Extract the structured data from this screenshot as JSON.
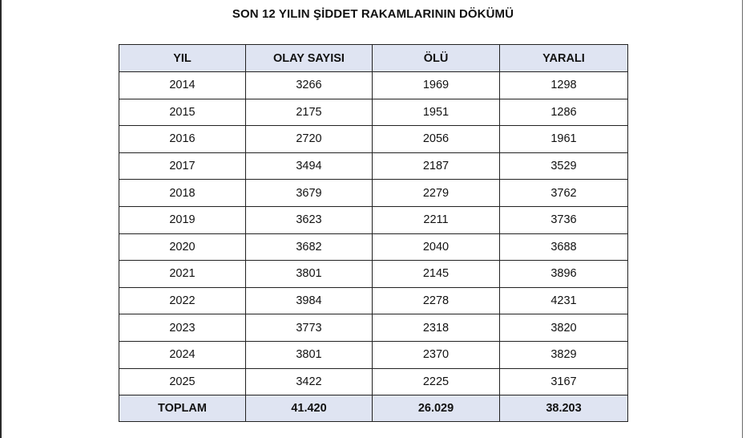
{
  "title": "SON 12 YILIN ŞİDDET RAKAMLARININ DÖKÜMÜ",
  "table": {
    "headers": [
      "YIL",
      "OLAY SAYISI",
      "ÖLÜ",
      "YARALI"
    ],
    "rows": [
      [
        "2014",
        "3266",
        "1969",
        "1298"
      ],
      [
        "2015",
        "2175",
        "1951",
        "1286"
      ],
      [
        "2016",
        "2720",
        "2056",
        "1961"
      ],
      [
        "2017",
        "3494",
        "2187",
        "3529"
      ],
      [
        "2018",
        "3679",
        "2279",
        "3762"
      ],
      [
        "2019",
        "3623",
        "2211",
        "3736"
      ],
      [
        "2020",
        "3682",
        "2040",
        "3688"
      ],
      [
        "2021",
        "3801",
        "2145",
        "3896"
      ],
      [
        "2022",
        "3984",
        "2278",
        "4231"
      ],
      [
        "2023",
        "3773",
        "2318",
        "3820"
      ],
      [
        "2024",
        "3801",
        "2370",
        "3829"
      ],
      [
        "2025",
        "3422",
        "2225",
        "3167"
      ]
    ],
    "total": [
      "TOPLAM",
      "41.420",
      "26.029",
      "38.203"
    ]
  },
  "colors": {
    "header_fill": "#dfe4f2",
    "border": "#222222"
  }
}
